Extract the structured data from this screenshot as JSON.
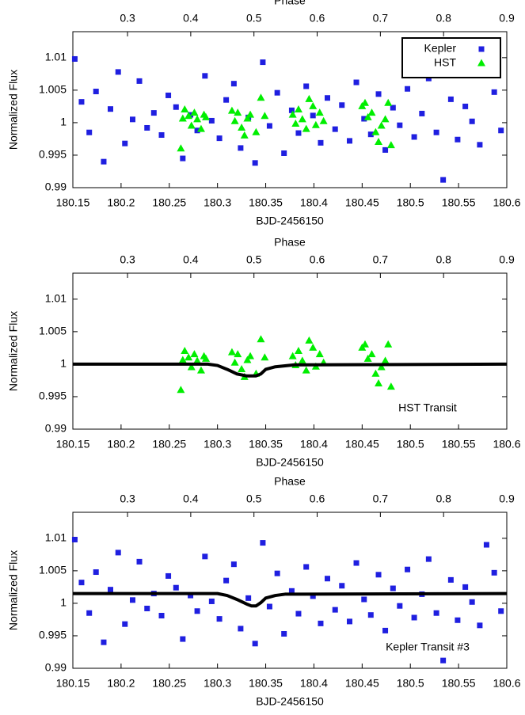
{
  "chart_data": [
    {
      "type": "scatter",
      "xlabel": "BJD-2456150",
      "ylabel": "Normalized Flux",
      "x2label": "Phase",
      "xlim": [
        180.15,
        180.6
      ],
      "xticks": [
        180.15,
        180.2,
        180.25,
        180.3,
        180.35,
        180.4,
        180.45,
        180.5,
        180.55,
        180.6
      ],
      "x2lim": [
        0.2135,
        0.9
      ],
      "x2ticks": [
        0.3,
        0.4,
        0.5,
        0.6,
        0.7,
        0.8,
        0.9
      ],
      "ylim": [
        0.99,
        1.014
      ],
      "yticks": [
        0.99,
        0.995,
        1,
        1.005,
        1.01
      ],
      "legend": "upper right",
      "series": [
        {
          "name": "Kepler",
          "color": "#1f1fe0",
          "marker": "square",
          "x": [
            180.152,
            180.159,
            180.167,
            180.174,
            180.182,
            180.189,
            180.197,
            180.204,
            180.212,
            180.219,
            180.227,
            180.234,
            180.242,
            180.249,
            180.257,
            180.264,
            180.272,
            180.279,
            180.287,
            180.294,
            180.302,
            180.309,
            180.317,
            180.324,
            180.332,
            180.339,
            180.347,
            180.354,
            180.362,
            180.369,
            180.377,
            180.384,
            180.392,
            180.399,
            180.407,
            180.414,
            180.422,
            180.429,
            180.437,
            180.444,
            180.452,
            180.459,
            180.467,
            180.474,
            180.482,
            180.489,
            180.497,
            180.504,
            180.512,
            180.519,
            180.527,
            180.534,
            180.542,
            180.549,
            180.557,
            180.564,
            180.572,
            180.579,
            180.587,
            180.594
          ],
          "values": [
            1.0098,
            1.0032,
            0.9985,
            1.0048,
            0.994,
            1.0021,
            1.0078,
            0.9968,
            1.0005,
            1.0064,
            0.9992,
            1.0015,
            0.9981,
            1.0042,
            1.0024,
            0.9945,
            1.0012,
            0.9988,
            1.0072,
            1.0003,
            0.9976,
            1.0035,
            1.006,
            0.9961,
            1.0008,
            0.9938,
            1.0093,
            0.9995,
            1.0046,
            0.9953,
            1.0019,
            0.9984,
            1.0056,
            1.0011,
            0.9969,
            1.0038,
            0.999,
            1.0027,
            0.9972,
            1.0062,
            1.0006,
            0.9982,
            1.0044,
            0.9958,
            1.0023,
            0.9996,
            1.0052,
            0.9978,
            1.0014,
            1.0068,
            0.9985,
            0.9912,
            1.0036,
            0.9974,
            1.0025,
            1.0002,
            0.9966,
            1.009,
            1.0047,
            0.9988
          ]
        },
        {
          "name": "HST",
          "color": "#00ee00",
          "marker": "triangle",
          "x": [
            180.262,
            180.264,
            180.266,
            180.27,
            180.273,
            180.276,
            180.279,
            180.283,
            180.286,
            180.288,
            180.315,
            180.318,
            180.321,
            180.325,
            180.328,
            180.331,
            180.334,
            180.34,
            180.345,
            180.349,
            180.378,
            180.381,
            180.384,
            180.388,
            180.392,
            180.395,
            180.399,
            180.402,
            180.406,
            180.41,
            180.45,
            180.453,
            180.456,
            180.46,
            180.464,
            180.467,
            180.47,
            180.474,
            180.477,
            180.48
          ],
          "values": [
            0.996,
            1.0006,
            1.002,
            1.001,
            0.9995,
            1.0015,
            1.0005,
            0.999,
            1.0012,
            1.0008,
            1.0018,
            1.0002,
            1.0015,
            0.9992,
            0.998,
            1.0006,
            1.0012,
            0.9985,
            1.0038,
            1.001,
            1.0012,
            0.9998,
            1.002,
            1.0005,
            0.999,
            1.0036,
            1.0025,
            0.9996,
            1.0015,
            1.0002,
            1.0025,
            1.003,
            1.0008,
            1.0015,
            0.9985,
            0.997,
            0.9995,
            1.0005,
            1.003,
            0.9965
          ]
        }
      ]
    },
    {
      "type": "scatter",
      "xlabel": "BJD-2456150",
      "ylabel": "Normalized Flux",
      "x2label": "Phase",
      "annotation": "HST Transit",
      "xlim": [
        180.15,
        180.6
      ],
      "xticks": [
        180.15,
        180.2,
        180.25,
        180.3,
        180.35,
        180.4,
        180.45,
        180.5,
        180.55,
        180.6
      ],
      "x2lim": [
        0.2135,
        0.9
      ],
      "x2ticks": [
        0.3,
        0.4,
        0.5,
        0.6,
        0.7,
        0.8,
        0.9
      ],
      "ylim": [
        0.99,
        1.014
      ],
      "yticks": [
        0.99,
        0.995,
        1,
        1.005,
        1.01
      ],
      "series": [
        {
          "color": "#00ee00",
          "marker": "triangle",
          "x": [
            180.262,
            180.264,
            180.266,
            180.27,
            180.273,
            180.276,
            180.279,
            180.283,
            180.286,
            180.288,
            180.315,
            180.318,
            180.321,
            180.325,
            180.328,
            180.331,
            180.334,
            180.34,
            180.345,
            180.349,
            180.378,
            180.381,
            180.384,
            180.388,
            180.392,
            180.395,
            180.399,
            180.402,
            180.406,
            180.41,
            180.45,
            180.453,
            180.456,
            180.46,
            180.464,
            180.467,
            180.47,
            180.474,
            180.477,
            180.48
          ],
          "values": [
            0.996,
            1.0006,
            1.002,
            1.001,
            0.9995,
            1.0015,
            1.0005,
            0.999,
            1.0012,
            1.0008,
            1.0018,
            1.0002,
            1.0015,
            0.9992,
            0.998,
            1.0006,
            1.0012,
            0.9985,
            1.0038,
            1.001,
            1.0012,
            0.9998,
            1.002,
            1.0005,
            0.999,
            1.0036,
            1.0025,
            0.9996,
            1.0015,
            1.0002,
            1.0025,
            1.003,
            1.0008,
            1.0015,
            0.9985,
            0.997,
            0.9995,
            1.0005,
            1.003,
            0.9965
          ]
        },
        {
          "color": "#000000",
          "marker": "line",
          "x": [
            180.15,
            180.29,
            180.3,
            180.31,
            180.32,
            180.33,
            180.34,
            180.345,
            180.35,
            180.36,
            180.38,
            180.6
          ],
          "values": [
            1,
            1,
            0.9998,
            0.9992,
            0.9985,
            0.9982,
            0.9982,
            0.9985,
            0.9992,
            0.9996,
            0.9999,
            1
          ]
        }
      ]
    },
    {
      "type": "scatter",
      "xlabel": "BJD-2456150",
      "ylabel": "Normalized Flux",
      "x2label": "Phase",
      "annotation": "Kepler Transit #3",
      "xlim": [
        180.15,
        180.6
      ],
      "xticks": [
        180.15,
        180.2,
        180.25,
        180.3,
        180.35,
        180.4,
        180.45,
        180.5,
        180.55,
        180.6
      ],
      "x2lim": [
        0.2135,
        0.9
      ],
      "x2ticks": [
        0.3,
        0.4,
        0.5,
        0.6,
        0.7,
        0.8,
        0.9
      ],
      "ylim": [
        0.99,
        1.014
      ],
      "yticks": [
        0.99,
        0.995,
        1,
        1.005,
        1.01
      ],
      "series": [
        {
          "color": "#1f1fe0",
          "marker": "square",
          "x": [
            180.152,
            180.159,
            180.167,
            180.174,
            180.182,
            180.189,
            180.197,
            180.204,
            180.212,
            180.219,
            180.227,
            180.234,
            180.242,
            180.249,
            180.257,
            180.264,
            180.272,
            180.279,
            180.287,
            180.294,
            180.302,
            180.309,
            180.317,
            180.324,
            180.332,
            180.339,
            180.347,
            180.354,
            180.362,
            180.369,
            180.377,
            180.384,
            180.392,
            180.399,
            180.407,
            180.414,
            180.422,
            180.429,
            180.437,
            180.444,
            180.452,
            180.459,
            180.467,
            180.474,
            180.482,
            180.489,
            180.497,
            180.504,
            180.512,
            180.519,
            180.527,
            180.534,
            180.542,
            180.549,
            180.557,
            180.564,
            180.572,
            180.579,
            180.587,
            180.594
          ],
          "values": [
            1.0098,
            1.0032,
            0.9985,
            1.0048,
            0.994,
            1.0021,
            1.0078,
            0.9968,
            1.0005,
            1.0064,
            0.9992,
            1.0015,
            0.9981,
            1.0042,
            1.0024,
            0.9945,
            1.0012,
            0.9988,
            1.0072,
            1.0003,
            0.9976,
            1.0035,
            1.006,
            0.9961,
            1.0008,
            0.9938,
            1.0093,
            0.9995,
            1.0046,
            0.9953,
            1.0019,
            0.9984,
            1.0056,
            1.0011,
            0.9969,
            1.0038,
            0.999,
            1.0027,
            0.9972,
            1.0062,
            1.0006,
            0.9982,
            1.0044,
            0.9958,
            1.0023,
            0.9996,
            1.0052,
            0.9978,
            1.0014,
            1.0068,
            0.9985,
            0.9912,
            1.0036,
            0.9974,
            1.0025,
            1.0002,
            0.9966,
            1.009,
            1.0047,
            0.9988
          ]
        },
        {
          "color": "#000000",
          "marker": "line",
          "x": [
            180.15,
            180.3,
            180.31,
            180.32,
            180.33,
            180.335,
            180.34,
            180.345,
            180.35,
            180.36,
            180.37,
            180.6
          ],
          "values": [
            1.0015,
            1.0015,
            1.0012,
            1.0006,
            0.9999,
            0.9996,
            0.9996,
            1.0001,
            1.0008,
            1.0012,
            1.0014,
            1.0015
          ]
        }
      ]
    }
  ]
}
